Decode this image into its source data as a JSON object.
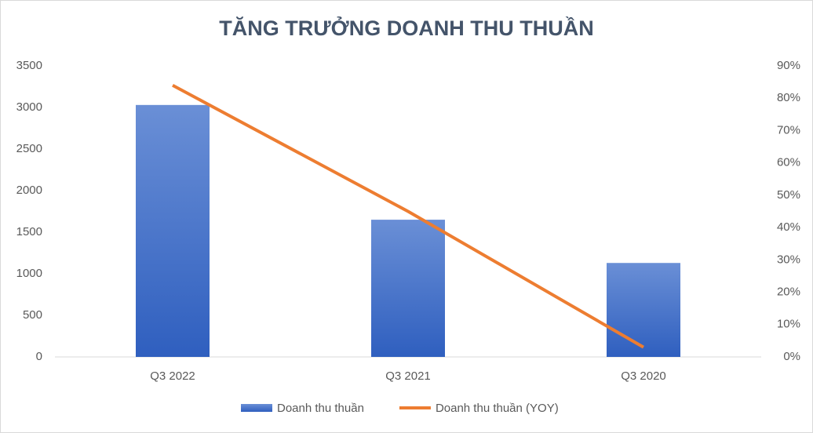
{
  "chart_data": {
    "type": "bar",
    "title": "TĂNG TRƯỞNG DOANH THU THUẦN",
    "categories": [
      "Q3 2022",
      "Q3 2021",
      "Q3 2020"
    ],
    "series": [
      {
        "name": "Doanh thu thuần",
        "color": "#4472c4",
        "type": "bar",
        "values": [
          3030,
          1650,
          1130
        ]
      },
      {
        "name": "Doanh thu thuần (YOY)",
        "color": "#ed7d31",
        "type": "line",
        "axis": "y2",
        "values": [
          84,
          45,
          3
        ]
      }
    ],
    "ylim": [
      0,
      3500
    ],
    "yticks": [
      0,
      500,
      1000,
      1500,
      2000,
      2500,
      3000,
      3500
    ],
    "y2lim": [
      0,
      90
    ],
    "y2ticks": [
      {
        "value": 0,
        "label": "0%"
      },
      {
        "value": 10,
        "label": "10%"
      },
      {
        "value": 20,
        "label": "20%"
      },
      {
        "value": 30,
        "label": "30%"
      },
      {
        "value": 40,
        "label": "40%"
      },
      {
        "value": 50,
        "label": "50%"
      },
      {
        "value": 60,
        "label": "60%"
      },
      {
        "value": 70,
        "label": "70%"
      },
      {
        "value": 80,
        "label": "80%"
      },
      {
        "value": 90,
        "label": "90%"
      }
    ],
    "legend": "bottom"
  }
}
